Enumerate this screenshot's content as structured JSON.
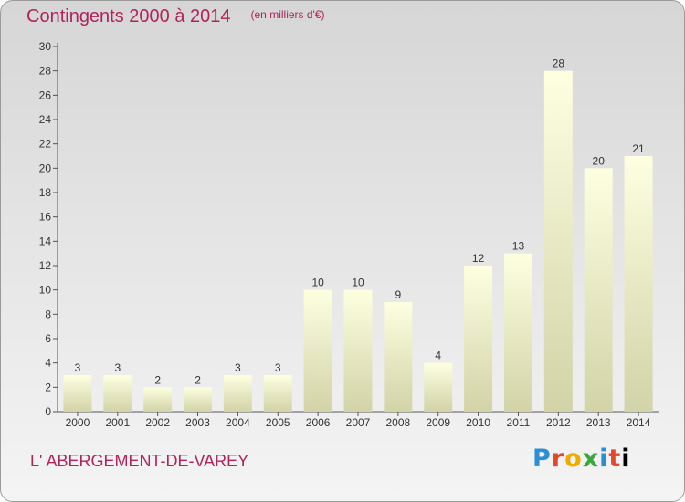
{
  "chart_data": {
    "type": "bar",
    "title": "Contingents 2000 à 2014",
    "subtitle": "(en milliers d'€)",
    "categories": [
      "2000",
      "2001",
      "2002",
      "2003",
      "2004",
      "2005",
      "2006",
      "2007",
      "2008",
      "2009",
      "2010",
      "2011",
      "2012",
      "2013",
      "2014"
    ],
    "values": [
      3,
      3,
      2,
      2,
      3,
      3,
      10,
      10,
      9,
      4,
      12,
      13,
      28,
      20,
      21
    ],
    "ylim": [
      0,
      30
    ],
    "yticks": [
      0,
      2,
      4,
      6,
      8,
      10,
      12,
      14,
      16,
      18,
      20,
      22,
      24,
      26,
      28,
      30
    ],
    "grid": false,
    "bar_color_top": "#fdffe0",
    "bar_color_bottom": "#d3d3a8"
  },
  "labels": {
    "commune": "L' ABERGEMENT-DE-VAREY",
    "logo_letters": [
      "P",
      "r",
      "o",
      "x",
      "i",
      "t",
      "i"
    ]
  }
}
